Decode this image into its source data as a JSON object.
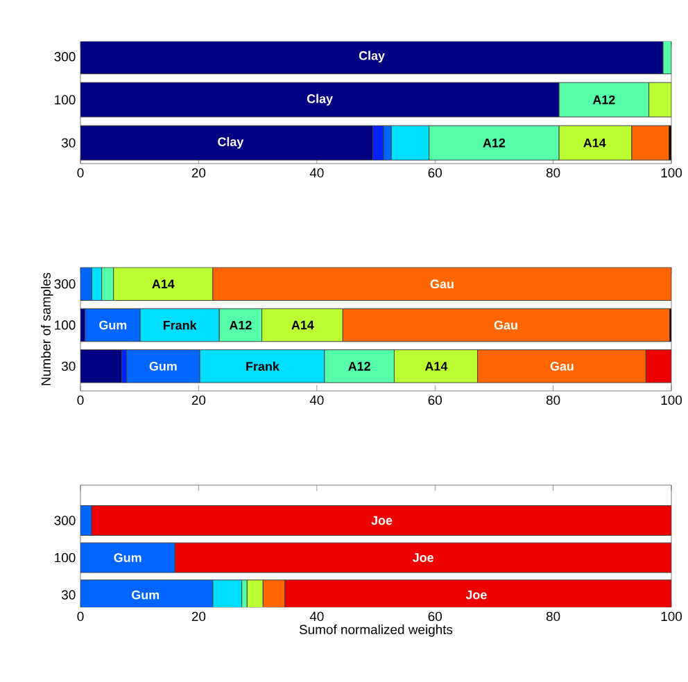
{
  "chart_data": [
    {
      "type": "bar",
      "orientation": "horizontal",
      "stacked": true,
      "categories": [
        "300",
        "100",
        "30"
      ],
      "series": [
        {
          "color": "#000080",
          "values": [
            98.6,
            81.0,
            49.5
          ]
        },
        {
          "color": "#0022ff",
          "values": [
            null,
            null,
            1.8
          ]
        },
        {
          "color": "#0066ff",
          "values": [
            null,
            null,
            1.3
          ]
        },
        {
          "color": "#00ddff",
          "values": [
            null,
            null,
            6.4
          ]
        },
        {
          "color": "#55ffaa",
          "values": [
            1.4,
            15.2,
            22.0
          ]
        },
        {
          "color": "#bbff33",
          "values": [
            null,
            3.8,
            12.3
          ]
        },
        {
          "color": "#ff6600",
          "values": [
            null,
            null,
            6.3
          ]
        },
        {
          "color": "#200000",
          "values": [
            null,
            null,
            0.4
          ]
        }
      ],
      "xlim": [
        0,
        100
      ],
      "xticks": [
        0,
        20,
        40,
        60,
        80,
        100
      ],
      "annotations": [
        {
          "text": "Clay",
          "x": 49.3,
          "y": "300"
        },
        {
          "text": "Clay",
          "x": 40.5,
          "y": "100"
        },
        {
          "text": "A12",
          "x": 88.6,
          "y": "100"
        },
        {
          "text": "Clay",
          "x": 25.4,
          "y": "30"
        },
        {
          "text": "A12",
          "x": 70,
          "y": "30"
        },
        {
          "text": "A14",
          "x": 87,
          "y": "30"
        }
      ]
    },
    {
      "type": "bar",
      "orientation": "horizontal",
      "stacked": true,
      "categories": [
        "300",
        "100",
        "30"
      ],
      "ylabel": "Number of samples",
      "series": [
        {
          "color": "#000080",
          "values": [
            null,
            0.8,
            7.0
          ]
        },
        {
          "color": "#0022ff",
          "values": [
            null,
            null,
            0.8
          ]
        },
        {
          "color": "#0066ff",
          "values": [
            1.9,
            9.3,
            12.4
          ]
        },
        {
          "color": "#00ddff",
          "values": [
            1.7,
            13.4,
            21.1
          ]
        },
        {
          "color": "#55ffaa",
          "values": [
            2.0,
            7.2,
            11.8
          ]
        },
        {
          "color": "#bbff33",
          "values": [
            16.8,
            13.7,
            14.1
          ]
        },
        {
          "color": "#ff6600",
          "values": [
            77.6,
            55.3,
            28.5
          ]
        },
        {
          "color": "#ee0000",
          "values": [
            null,
            null,
            4.3
          ]
        },
        {
          "color": "#200000",
          "values": [
            null,
            0.3,
            null
          ]
        }
      ],
      "xlim": [
        0,
        100
      ],
      "xticks": [
        0,
        20,
        40,
        60,
        80,
        100
      ],
      "annotations": [
        {
          "text": "A14",
          "x": 14,
          "y": "300"
        },
        {
          "text": "Gau",
          "x": 61.2,
          "y": "300"
        },
        {
          "text": "Gum",
          "x": 5.5,
          "y": "100"
        },
        {
          "text": "Frank",
          "x": 16.8,
          "y": "100"
        },
        {
          "text": "A12",
          "x": 27.1,
          "y": "100"
        },
        {
          "text": "A14",
          "x": 37.6,
          "y": "100"
        },
        {
          "text": "Gau",
          "x": 72,
          "y": "100"
        },
        {
          "text": "Gum",
          "x": 14,
          "y": "30"
        },
        {
          "text": "Frank",
          "x": 30.8,
          "y": "30"
        },
        {
          "text": "A12",
          "x": 47.2,
          "y": "30"
        },
        {
          "text": "A14",
          "x": 60.2,
          "y": "30"
        },
        {
          "text": "Gau",
          "x": 81.5,
          "y": "30"
        }
      ]
    },
    {
      "type": "bar",
      "orientation": "horizontal",
      "stacked": true,
      "categories": [
        "300",
        "100",
        "30"
      ],
      "xlabel": "Sumof normalized weights",
      "series": [
        {
          "color": "#0066ff",
          "values": [
            1.9,
            16.0,
            22.4
          ]
        },
        {
          "color": "#00ddff",
          "values": [
            null,
            null,
            4.9
          ]
        },
        {
          "color": "#55ffaa",
          "values": [
            null,
            null,
            0.9
          ]
        },
        {
          "color": "#bbff33",
          "values": [
            null,
            null,
            2.7
          ]
        },
        {
          "color": "#ff6600",
          "values": [
            null,
            null,
            3.7
          ]
        },
        {
          "color": "#ee0000",
          "values": [
            98.1,
            84.0,
            65.4
          ]
        }
      ],
      "xlim": [
        0,
        100
      ],
      "xticks": [
        0,
        20,
        40,
        60,
        80,
        100
      ],
      "annotations": [
        {
          "text": "Joe",
          "x": 51,
          "y": "300"
        },
        {
          "text": "Gum",
          "x": 8,
          "y": "100"
        },
        {
          "text": "Joe",
          "x": 58,
          "y": "100"
        },
        {
          "text": "Gum",
          "x": 11,
          "y": "30"
        },
        {
          "text": "Joe",
          "x": 67,
          "y": "30"
        }
      ]
    }
  ]
}
